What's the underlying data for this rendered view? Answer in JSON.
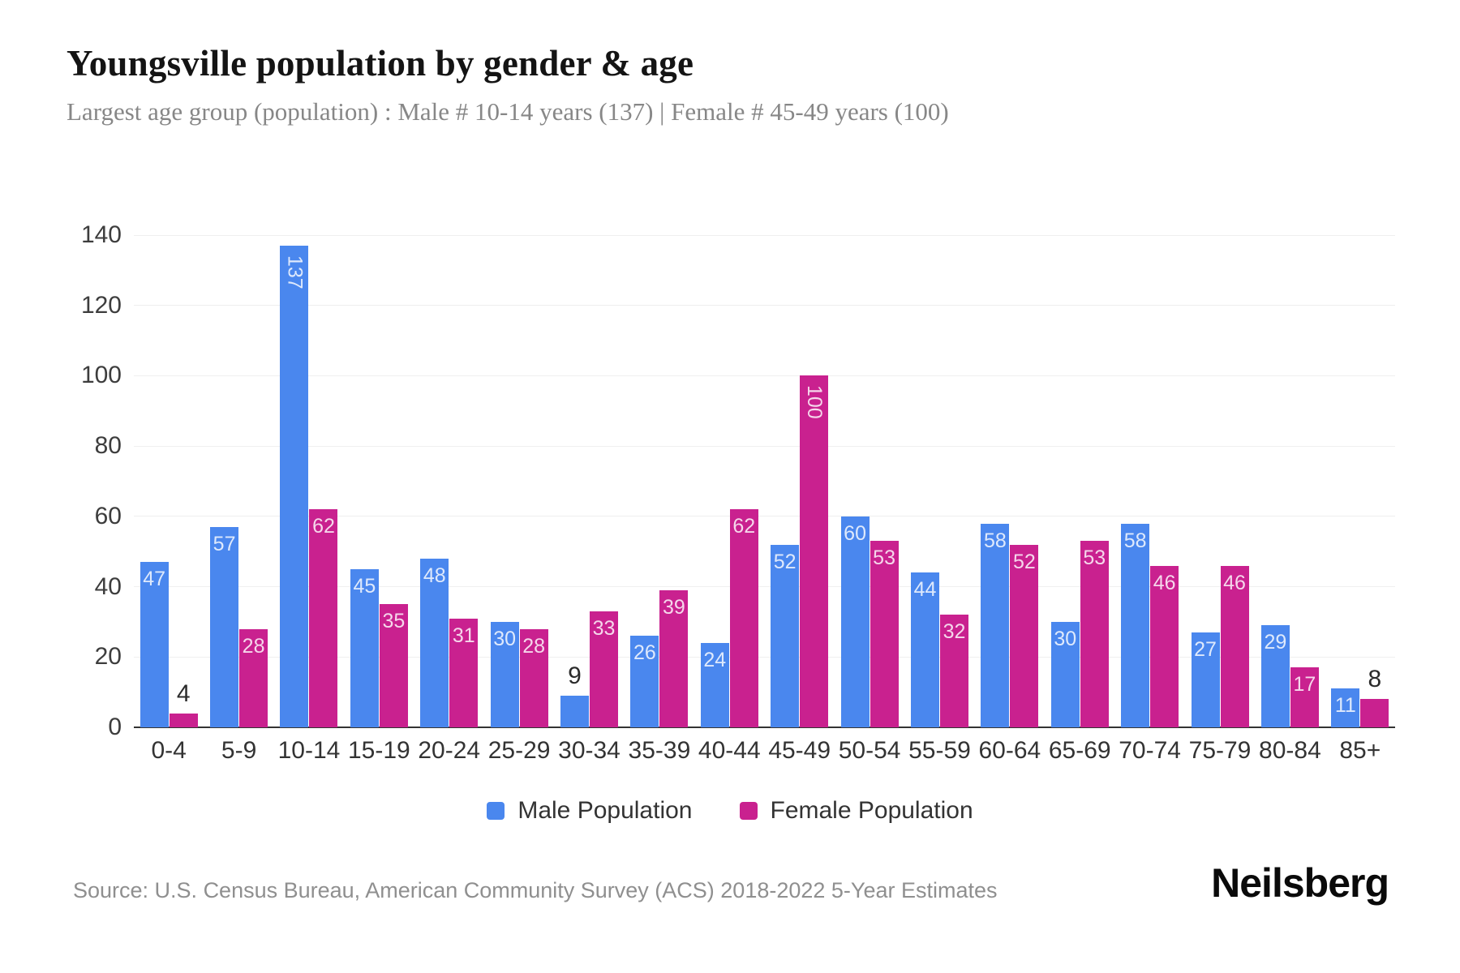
{
  "header": {
    "title": "Youngsville population by gender & age",
    "subtitle": "Largest age group (population) : Male # 10-14 years (137) | Female # 45-49 years (100)"
  },
  "chart_data": {
    "type": "bar",
    "title": "Youngsville population by gender & age",
    "xlabel": "",
    "ylabel": "",
    "categories": [
      "0-4",
      "5-9",
      "10-14",
      "15-19",
      "20-24",
      "25-29",
      "30-34",
      "35-39",
      "40-44",
      "45-49",
      "50-54",
      "55-59",
      "60-64",
      "65-69",
      "70-74",
      "75-79",
      "80-84",
      "85+"
    ],
    "series": [
      {
        "name": "Male Population",
        "color": "#4a87ee",
        "values": [
          47,
          57,
          137,
          45,
          48,
          30,
          9,
          26,
          24,
          52,
          60,
          44,
          58,
          30,
          58,
          27,
          29,
          11
        ]
      },
      {
        "name": "Female Population",
        "color": "#c9218f",
        "values": [
          4,
          28,
          62,
          35,
          31,
          28,
          33,
          39,
          62,
          100,
          53,
          32,
          52,
          53,
          46,
          46,
          17,
          8
        ]
      }
    ],
    "ylim": [
      0,
      140
    ],
    "yticks": [
      0,
      20,
      40,
      60,
      80,
      100,
      120,
      140
    ],
    "grid": true,
    "legend_position": "bottom"
  },
  "legend": {
    "items": [
      {
        "label": "Male Population",
        "color": "#4a87ee"
      },
      {
        "label": "Female Population",
        "color": "#c9218f"
      }
    ]
  },
  "footer": {
    "source": "Source: U.S. Census Bureau, American Community Survey (ACS) 2018-2022 5-Year Estimates",
    "brand": "Neilsberg"
  }
}
